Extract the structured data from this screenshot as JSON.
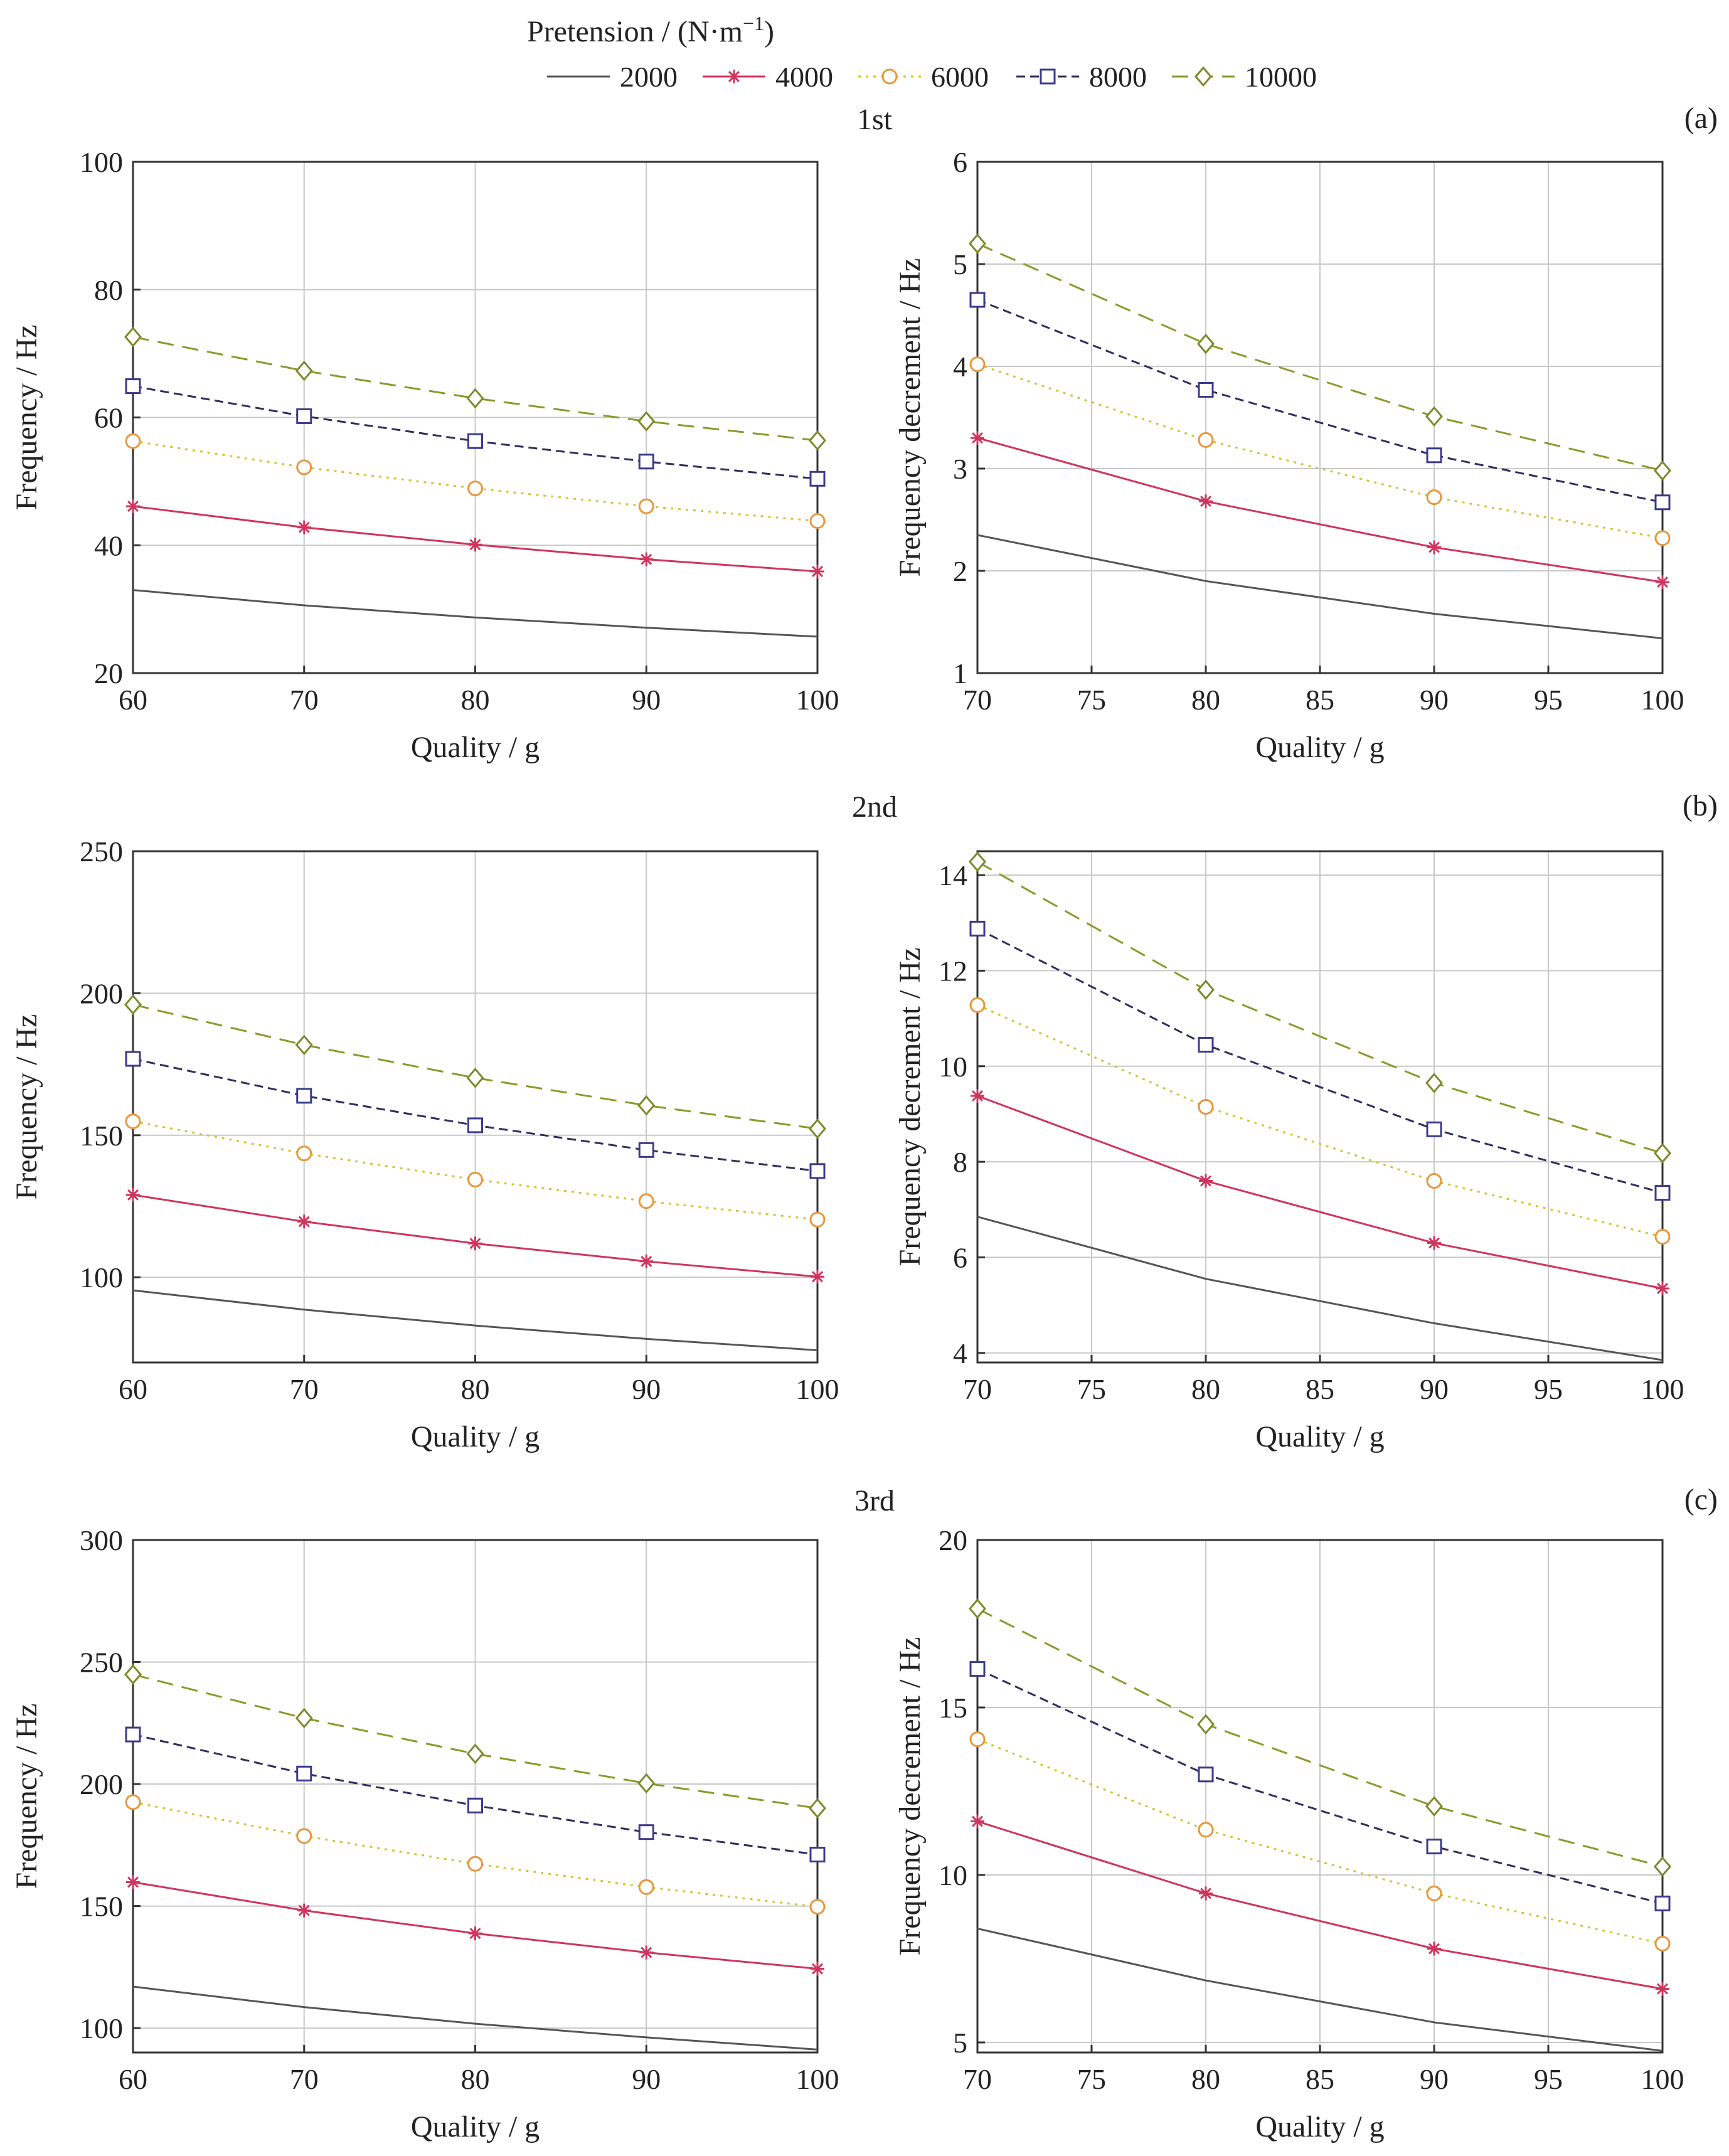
{
  "legend": {
    "title_main": "Pretension / (N·m",
    "title_sup": "−1",
    "title_close": ")"
  },
  "rows": [
    {
      "title": "1st",
      "tag": "(a)"
    },
    {
      "title": "2nd",
      "tag": "(b)"
    },
    {
      "title": "3rd",
      "tag": "(c)"
    }
  ],
  "series_styles": [
    {
      "name": "2000",
      "color": "#555555",
      "dash": "none",
      "marker": "none"
    },
    {
      "name": "4000",
      "color": "#d0345c",
      "dash": "none",
      "marker": "star"
    },
    {
      "name": "6000",
      "color": "#c8c832",
      "dash": "dot",
      "marker": "circle",
      "marker_color": "#e8963c"
    },
    {
      "name": "8000",
      "color": "#2e2e5e",
      "dash": "dash",
      "marker": "square",
      "marker_color": "#3a3a8c"
    },
    {
      "name": "10000",
      "color": "#8a9a2a",
      "dash": "longdash",
      "marker": "diamond",
      "marker_color": "#7a8a2a"
    }
  ],
  "chart_data": [
    {
      "type": "line",
      "row": 0,
      "col": 0,
      "xlabel": "Quality / g",
      "ylabel": "Frequency / Hz",
      "xlim": [
        60,
        100
      ],
      "ylim": [
        20,
        100
      ],
      "xticks": [
        60,
        70,
        80,
        90,
        100
      ],
      "yticks": [
        20,
        40,
        60,
        80,
        100
      ],
      "grid": true,
      "x": [
        60,
        70,
        80,
        90,
        100
      ],
      "series": [
        {
          "name": "2000",
          "values": [
            33.0,
            30.6,
            28.7,
            27.1,
            25.7
          ]
        },
        {
          "name": "4000",
          "values": [
            46.1,
            42.8,
            40.1,
            37.8,
            35.9
          ]
        },
        {
          "name": "6000",
          "values": [
            56.3,
            52.2,
            48.9,
            46.1,
            43.8
          ]
        },
        {
          "name": "8000",
          "values": [
            64.9,
            60.2,
            56.3,
            53.1,
            50.4
          ]
        },
        {
          "name": "10000",
          "values": [
            72.6,
            67.3,
            63.0,
            59.4,
            56.4
          ]
        }
      ]
    },
    {
      "type": "line",
      "row": 0,
      "col": 1,
      "xlabel": "Quality / g",
      "ylabel": "Frequency decrement / Hz",
      "xlim": [
        70,
        100
      ],
      "ylim": [
        1,
        6
      ],
      "xticks": [
        70,
        75,
        80,
        85,
        90,
        95,
        100
      ],
      "yticks": [
        1,
        2,
        3,
        4,
        5,
        6
      ],
      "grid": true,
      "x": [
        70,
        80,
        90,
        100
      ],
      "series": [
        {
          "name": "2000",
          "values": [
            2.35,
            1.9,
            1.58,
            1.34
          ]
        },
        {
          "name": "4000",
          "values": [
            3.3,
            2.68,
            2.23,
            1.89
          ]
        },
        {
          "name": "6000",
          "values": [
            4.02,
            3.28,
            2.72,
            2.32
          ]
        },
        {
          "name": "8000",
          "values": [
            4.65,
            3.77,
            3.13,
            2.67
          ]
        },
        {
          "name": "10000",
          "values": [
            5.2,
            4.22,
            3.51,
            2.98
          ]
        }
      ]
    },
    {
      "type": "line",
      "row": 1,
      "col": 0,
      "xlabel": "Quality / g",
      "ylabel": "Frequency / Hz",
      "xlim": [
        60,
        100
      ],
      "ylim": [
        70,
        250
      ],
      "xticks": [
        60,
        70,
        80,
        90,
        100
      ],
      "yticks": [
        100,
        150,
        200,
        250
      ],
      "grid": true,
      "x": [
        60,
        70,
        80,
        90,
        100
      ],
      "series": [
        {
          "name": "2000",
          "values": [
            95.4,
            88.6,
            83.0,
            78.3,
            74.3
          ]
        },
        {
          "name": "4000",
          "values": [
            129.0,
            119.6,
            111.9,
            105.6,
            100.2
          ]
        },
        {
          "name": "6000",
          "values": [
            154.9,
            143.6,
            134.4,
            126.8,
            120.3
          ]
        },
        {
          "name": "8000",
          "values": [
            176.9,
            163.9,
            153.5,
            144.8,
            137.4
          ]
        },
        {
          "name": "10000",
          "values": [
            196.0,
            181.8,
            170.2,
            160.5,
            152.3
          ]
        }
      ]
    },
    {
      "type": "line",
      "row": 1,
      "col": 1,
      "xlabel": "Quality / g",
      "ylabel": "Frequency decrement / Hz",
      "xlim": [
        70,
        100
      ],
      "ylim": [
        3.8,
        14.5
      ],
      "xticks": [
        70,
        75,
        80,
        85,
        90,
        95,
        100
      ],
      "yticks": [
        4,
        6,
        8,
        10,
        12,
        14
      ],
      "grid": true,
      "x": [
        70,
        80,
        90,
        100
      ],
      "series": [
        {
          "name": "2000",
          "values": [
            6.85,
            5.55,
            4.62,
            3.85
          ]
        },
        {
          "name": "4000",
          "values": [
            9.38,
            7.6,
            6.3,
            5.35
          ]
        },
        {
          "name": "6000",
          "values": [
            11.28,
            9.15,
            7.6,
            6.43
          ]
        },
        {
          "name": "8000",
          "values": [
            12.88,
            10.45,
            8.68,
            7.35
          ]
        },
        {
          "name": "10000",
          "values": [
            14.28,
            11.6,
            9.65,
            8.18
          ]
        }
      ]
    },
    {
      "type": "line",
      "row": 2,
      "col": 0,
      "xlabel": "Quality / g",
      "ylabel": "Frequency / Hz",
      "xlim": [
        60,
        100
      ],
      "ylim": [
        90,
        300
      ],
      "xticks": [
        60,
        70,
        80,
        90,
        100
      ],
      "yticks": [
        100,
        150,
        200,
        250,
        300
      ],
      "grid": true,
      "x": [
        60,
        70,
        80,
        90,
        100
      ],
      "series": [
        {
          "name": "2000",
          "values": [
            117.0,
            108.6,
            101.8,
            96.2,
            91.2
          ]
        },
        {
          "name": "4000",
          "values": [
            159.8,
            148.2,
            138.8,
            131.0,
            124.3
          ]
        },
        {
          "name": "6000",
          "values": [
            192.6,
            178.7,
            167.3,
            157.8,
            149.7
          ]
        },
        {
          "name": "8000",
          "values": [
            220.3,
            204.3,
            191.2,
            180.3,
            171.1
          ]
        },
        {
          "name": "10000",
          "values": [
            244.9,
            227.0,
            212.4,
            200.3,
            190.1
          ]
        }
      ]
    },
    {
      "type": "line",
      "row": 2,
      "col": 1,
      "xlabel": "Quality / g",
      "ylabel": "Frequency decrement / Hz",
      "xlim": [
        70,
        100
      ],
      "ylim": [
        4.7,
        20
      ],
      "xticks": [
        70,
        75,
        80,
        85,
        90,
        95,
        100
      ],
      "yticks": [
        5,
        10,
        15,
        20
      ],
      "grid": true,
      "x": [
        70,
        80,
        90,
        100
      ],
      "series": [
        {
          "name": "2000",
          "values": [
            8.4,
            6.85,
            5.6,
            4.75
          ]
        },
        {
          "name": "4000",
          "values": [
            11.6,
            9.45,
            7.8,
            6.6
          ]
        },
        {
          "name": "6000",
          "values": [
            14.05,
            11.35,
            9.45,
            7.95
          ]
        },
        {
          "name": "8000",
          "values": [
            16.15,
            13.0,
            10.85,
            9.15
          ]
        },
        {
          "name": "10000",
          "values": [
            17.95,
            14.5,
            12.05,
            10.25
          ]
        }
      ]
    }
  ]
}
